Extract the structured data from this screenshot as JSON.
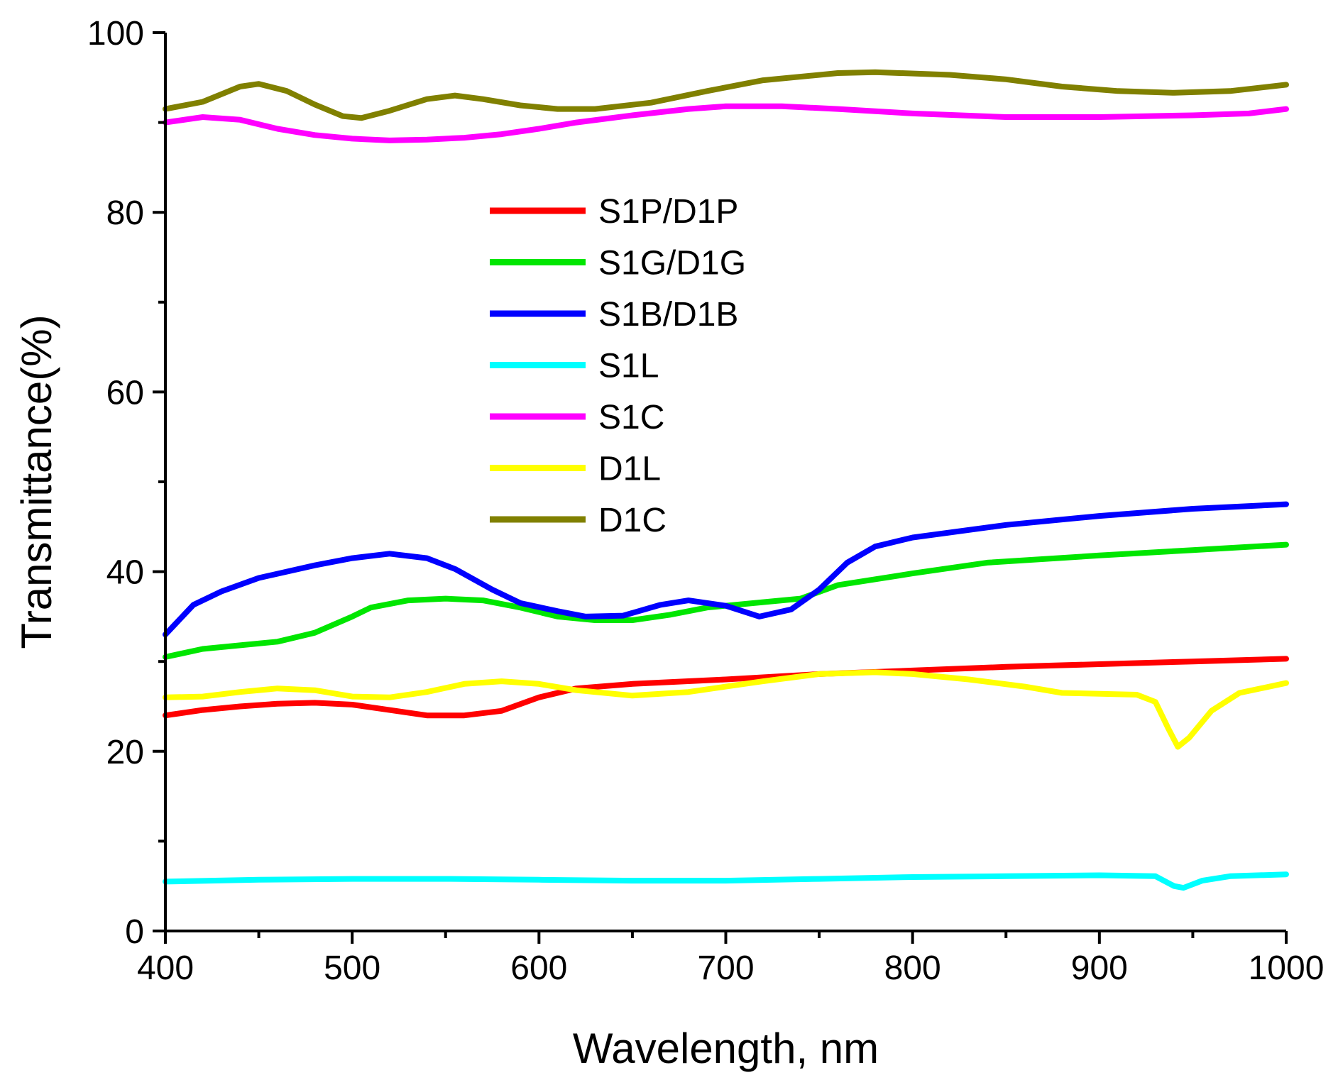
{
  "chart_data": {
    "type": "line",
    "title": "",
    "xlabel": "Wavelength, nm",
    "ylabel": "Transmittance(%)",
    "xlim": [
      400,
      1000
    ],
    "ylim": [
      0,
      100
    ],
    "x_ticks": [
      400,
      500,
      600,
      700,
      800,
      900,
      1000
    ],
    "y_ticks": [
      0,
      20,
      40,
      60,
      80,
      100
    ],
    "grid": false,
    "legend_position": "center",
    "series": [
      {
        "name": "S1P/D1P",
        "color": "#ff0000",
        "points": [
          [
            400,
            24
          ],
          [
            420,
            24.6
          ],
          [
            440,
            25
          ],
          [
            460,
            25.3
          ],
          [
            480,
            25.4
          ],
          [
            500,
            25.2
          ],
          [
            520,
            24.6
          ],
          [
            540,
            24
          ],
          [
            560,
            24
          ],
          [
            580,
            24.5
          ],
          [
            600,
            26
          ],
          [
            620,
            27
          ],
          [
            650,
            27.5
          ],
          [
            700,
            28
          ],
          [
            750,
            28.6
          ],
          [
            800,
            29
          ],
          [
            850,
            29.4
          ],
          [
            900,
            29.7
          ],
          [
            950,
            30
          ],
          [
            1000,
            30.3
          ]
        ]
      },
      {
        "name": "S1G/D1G",
        "color": "#00e600",
        "points": [
          [
            400,
            30.5
          ],
          [
            420,
            31.4
          ],
          [
            440,
            31.8
          ],
          [
            460,
            32.2
          ],
          [
            480,
            33.2
          ],
          [
            500,
            35
          ],
          [
            510,
            36
          ],
          [
            530,
            36.8
          ],
          [
            550,
            37
          ],
          [
            570,
            36.8
          ],
          [
            590,
            36
          ],
          [
            610,
            35
          ],
          [
            630,
            34.6
          ],
          [
            650,
            34.6
          ],
          [
            670,
            35.2
          ],
          [
            690,
            36
          ],
          [
            720,
            36.6
          ],
          [
            740,
            37
          ],
          [
            760,
            38.5
          ],
          [
            800,
            39.8
          ],
          [
            840,
            41
          ],
          [
            900,
            41.8
          ],
          [
            950,
            42.4
          ],
          [
            1000,
            43
          ]
        ]
      },
      {
        "name": "S1B/D1B",
        "color": "#0000ff",
        "points": [
          [
            400,
            33
          ],
          [
            415,
            36.3
          ],
          [
            430,
            37.8
          ],
          [
            450,
            39.3
          ],
          [
            480,
            40.7
          ],
          [
            500,
            41.5
          ],
          [
            520,
            42
          ],
          [
            540,
            41.5
          ],
          [
            555,
            40.3
          ],
          [
            575,
            38
          ],
          [
            590,
            36.5
          ],
          [
            610,
            35.6
          ],
          [
            625,
            35
          ],
          [
            645,
            35.1
          ],
          [
            665,
            36.3
          ],
          [
            680,
            36.8
          ],
          [
            700,
            36.2
          ],
          [
            718,
            35
          ],
          [
            735,
            35.8
          ],
          [
            750,
            38
          ],
          [
            765,
            41
          ],
          [
            780,
            42.8
          ],
          [
            800,
            43.8
          ],
          [
            850,
            45.2
          ],
          [
            900,
            46.2
          ],
          [
            950,
            47
          ],
          [
            1000,
            47.5
          ]
        ]
      },
      {
        "name": "S1L",
        "color": "#00ffff",
        "points": [
          [
            400,
            5.5
          ],
          [
            450,
            5.7
          ],
          [
            500,
            5.8
          ],
          [
            550,
            5.8
          ],
          [
            600,
            5.7
          ],
          [
            650,
            5.6
          ],
          [
            700,
            5.6
          ],
          [
            750,
            5.8
          ],
          [
            800,
            6
          ],
          [
            850,
            6.1
          ],
          [
            900,
            6.2
          ],
          [
            930,
            6.1
          ],
          [
            940,
            5
          ],
          [
            945,
            4.8
          ],
          [
            955,
            5.6
          ],
          [
            970,
            6.1
          ],
          [
            1000,
            6.3
          ]
        ]
      },
      {
        "name": "S1C",
        "color": "#ff00ff",
        "points": [
          [
            400,
            90
          ],
          [
            420,
            90.6
          ],
          [
            440,
            90.3
          ],
          [
            460,
            89.3
          ],
          [
            480,
            88.6
          ],
          [
            500,
            88.2
          ],
          [
            520,
            88
          ],
          [
            540,
            88.1
          ],
          [
            560,
            88.3
          ],
          [
            580,
            88.7
          ],
          [
            600,
            89.3
          ],
          [
            620,
            90
          ],
          [
            650,
            90.8
          ],
          [
            680,
            91.5
          ],
          [
            700,
            91.8
          ],
          [
            730,
            91.8
          ],
          [
            760,
            91.5
          ],
          [
            800,
            91
          ],
          [
            850,
            90.6
          ],
          [
            900,
            90.6
          ],
          [
            950,
            90.8
          ],
          [
            980,
            91
          ],
          [
            1000,
            91.5
          ]
        ]
      },
      {
        "name": "D1L",
        "color": "#ffff00",
        "points": [
          [
            400,
            26
          ],
          [
            420,
            26.1
          ],
          [
            440,
            26.6
          ],
          [
            460,
            27
          ],
          [
            480,
            26.8
          ],
          [
            500,
            26.1
          ],
          [
            520,
            26
          ],
          [
            540,
            26.6
          ],
          [
            560,
            27.5
          ],
          [
            580,
            27.8
          ],
          [
            600,
            27.5
          ],
          [
            620,
            26.8
          ],
          [
            650,
            26.2
          ],
          [
            680,
            26.6
          ],
          [
            700,
            27.2
          ],
          [
            720,
            27.8
          ],
          [
            750,
            28.6
          ],
          [
            780,
            28.8
          ],
          [
            800,
            28.6
          ],
          [
            830,
            28
          ],
          [
            860,
            27.2
          ],
          [
            880,
            26.5
          ],
          [
            920,
            26.3
          ],
          [
            930,
            25.5
          ],
          [
            937,
            22.5
          ],
          [
            942,
            20.5
          ],
          [
            948,
            21.5
          ],
          [
            960,
            24.5
          ],
          [
            975,
            26.5
          ],
          [
            1000,
            27.6
          ]
        ]
      },
      {
        "name": "D1C",
        "color": "#808000",
        "points": [
          [
            400,
            91.5
          ],
          [
            420,
            92.3
          ],
          [
            440,
            94
          ],
          [
            450,
            94.3
          ],
          [
            465,
            93.5
          ],
          [
            480,
            92
          ],
          [
            495,
            90.7
          ],
          [
            505,
            90.5
          ],
          [
            520,
            91.3
          ],
          [
            540,
            92.6
          ],
          [
            555,
            93
          ],
          [
            570,
            92.6
          ],
          [
            590,
            91.9
          ],
          [
            610,
            91.5
          ],
          [
            630,
            91.5
          ],
          [
            660,
            92.2
          ],
          [
            690,
            93.5
          ],
          [
            720,
            94.7
          ],
          [
            760,
            95.5
          ],
          [
            780,
            95.6
          ],
          [
            820,
            95.3
          ],
          [
            850,
            94.8
          ],
          [
            880,
            94
          ],
          [
            910,
            93.5
          ],
          [
            940,
            93.3
          ],
          [
            970,
            93.5
          ],
          [
            1000,
            94.2
          ]
        ]
      }
    ]
  }
}
